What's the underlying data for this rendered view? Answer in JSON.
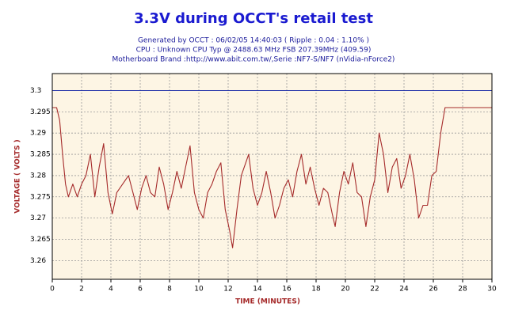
{
  "chart_data": {
    "type": "line",
    "title": "3.3V during OCCT's retail test",
    "subtitle": [
      "Generated by OCCT : 06/02/05 14:40:03 ( Ripple : 0.04 : 1.10% )",
      "CPU : Unknown CPU Typ @ 2488.63 MHz FSB 207.39MHz (409.59)",
      "Motherboard Brand :http://www.abit.com.tw/,Serie :NF7-S/NF7 (nVidia-nForce2)"
    ],
    "x_label": "TIME (MINUTES)",
    "y_label": "VOLTAGE ( VOLTS )",
    "series": [
      {
        "name": "3.3V",
        "color": "#a52a2a",
        "x": [
          0,
          0.3,
          0.5,
          0.7,
          0.9,
          1.1,
          1.4,
          1.7,
          2.0,
          2.3,
          2.6,
          2.9,
          3.2,
          3.5,
          3.8,
          4.1,
          4.4,
          4.8,
          5.2,
          5.5,
          5.8,
          6.1,
          6.4,
          6.7,
          7.0,
          7.3,
          7.6,
          7.9,
          8.2,
          8.5,
          8.8,
          9.1,
          9.4,
          9.7,
          10.0,
          10.3,
          10.6,
          10.9,
          11.2,
          11.5,
          11.8,
          12.1,
          12.3,
          12.6,
          12.9,
          13.2,
          13.4,
          13.7,
          14.0,
          14.3,
          14.6,
          14.9,
          15.2,
          15.5,
          15.8,
          16.1,
          16.4,
          16.7,
          17.0,
          17.3,
          17.6,
          17.9,
          18.2,
          18.5,
          18.8,
          19.1,
          19.3,
          19.6,
          19.9,
          20.2,
          20.5,
          20.8,
          21.1,
          21.4,
          21.7,
          22.0,
          22.3,
          22.6,
          22.9,
          23.2,
          23.5,
          23.8,
          24.1,
          24.4,
          24.7,
          25.0,
          25.3,
          25.6,
          25.9,
          26.2,
          26.5,
          26.8,
          30
        ],
        "values": [
          3.296,
          3.296,
          3.293,
          3.285,
          3.278,
          3.275,
          3.278,
          3.275,
          3.278,
          3.28,
          3.285,
          3.275,
          3.282,
          3.2875,
          3.276,
          3.271,
          3.276,
          3.278,
          3.28,
          3.276,
          3.272,
          3.277,
          3.28,
          3.276,
          3.275,
          3.282,
          3.278,
          3.272,
          3.276,
          3.281,
          3.277,
          3.282,
          3.287,
          3.276,
          3.272,
          3.27,
          3.276,
          3.278,
          3.281,
          3.283,
          3.272,
          3.267,
          3.263,
          3.272,
          3.28,
          3.283,
          3.285,
          3.277,
          3.273,
          3.276,
          3.281,
          3.276,
          3.27,
          3.273,
          3.277,
          3.279,
          3.275,
          3.281,
          3.285,
          3.278,
          3.282,
          3.277,
          3.273,
          3.277,
          3.276,
          3.271,
          3.268,
          3.276,
          3.281,
          3.278,
          3.283,
          3.276,
          3.275,
          3.268,
          3.275,
          3.279,
          3.29,
          3.285,
          3.276,
          3.282,
          3.284,
          3.277,
          3.28,
          3.285,
          3.279,
          3.27,
          3.273,
          3.273,
          3.28,
          3.281,
          3.29,
          3.296,
          3.296
        ]
      }
    ],
    "reference_line": {
      "value": 3.3,
      "color": "#1f2fa8"
    },
    "xlim": [
      0,
      30
    ],
    "xticks": [
      0,
      2,
      4,
      6,
      8,
      10,
      12,
      14,
      16,
      18,
      20,
      22,
      24,
      26,
      28,
      30
    ],
    "ylim": [
      3.2556,
      3.304
    ],
    "yticks": [
      3.26,
      3.265,
      3.27,
      3.275,
      3.28,
      3.285,
      3.29,
      3.295,
      3.3
    ],
    "grid": true,
    "plot_background": "#fdf5e4"
  }
}
